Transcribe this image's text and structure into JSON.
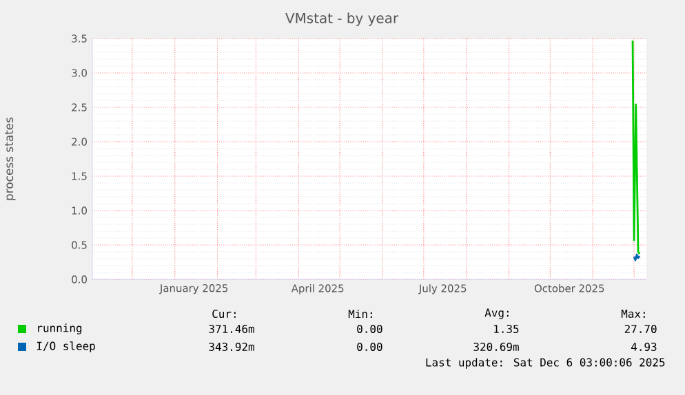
{
  "chart_data": {
    "type": "line",
    "title": "VMstat - by year",
    "ylabel": "process states",
    "xlim": [
      "2024-11-02",
      "2025-12-10"
    ],
    "xticks": [
      {
        "value": "2024-12-01",
        "label": null
      },
      {
        "value": "2025-01-01",
        "label": null
      },
      {
        "value": "2025-01-15",
        "label": "January 2025"
      },
      {
        "value": "2025-02-01",
        "label": null
      },
      {
        "value": "2025-03-01",
        "label": null
      },
      {
        "value": "2025-04-01",
        "label": null
      },
      {
        "value": "2025-04-15",
        "label": "April 2025"
      },
      {
        "value": "2025-05-01",
        "label": null
      },
      {
        "value": "2025-06-01",
        "label": null
      },
      {
        "value": "2025-07-01",
        "label": null
      },
      {
        "value": "2025-07-15",
        "label": "July 2025"
      },
      {
        "value": "2025-08-01",
        "label": null
      },
      {
        "value": "2025-09-01",
        "label": null
      },
      {
        "value": "2025-10-01",
        "label": null
      },
      {
        "value": "2025-10-15",
        "label": "October 2025"
      },
      {
        "value": "2025-11-01",
        "label": null
      },
      {
        "value": "2025-12-01",
        "label": null
      }
    ],
    "ylim": [
      0,
      3.5
    ],
    "yticks": [
      {
        "value": 0,
        "label": "0.0"
      },
      {
        "value": 0.5,
        "label": "0.5"
      },
      {
        "value": 1,
        "label": "1.0"
      },
      {
        "value": 1.5,
        "label": "1.5"
      },
      {
        "value": 2,
        "label": "2.0"
      },
      {
        "value": 2.5,
        "label": "2.5"
      },
      {
        "value": 3,
        "label": "3.0"
      },
      {
        "value": 3.5,
        "label": "3.5"
      }
    ],
    "grid": true,
    "legend": "bottom",
    "series": [
      {
        "name": "running",
        "color": "#00cc00",
        "x": [
          "2025-11-30",
          "2025-12-01",
          "2025-12-02T08:00",
          "2025-12-04",
          "2025-12-05"
        ],
        "values": [
          3.47,
          0.57,
          2.54,
          0.4,
          0.37
        ]
      },
      {
        "name": "I/O sleep",
        "color": "#0066b3",
        "x": [
          "2025-12-01",
          "2025-12-02",
          "2025-12-03",
          "2025-12-04",
          "2025-12-05"
        ],
        "values": [
          0.33,
          0.28,
          0.36,
          0.31,
          0.34
        ]
      }
    ],
    "annotations": [
      "Cur:",
      "Min:",
      "Avg:",
      "Max:",
      "371.46m",
      "0.00",
      "1.35",
      "27.70",
      "343.92m",
      "0.00",
      "320.69m",
      "4.93",
      "Last update: Sat Dec  6 03:00:06 2025"
    ]
  }
}
